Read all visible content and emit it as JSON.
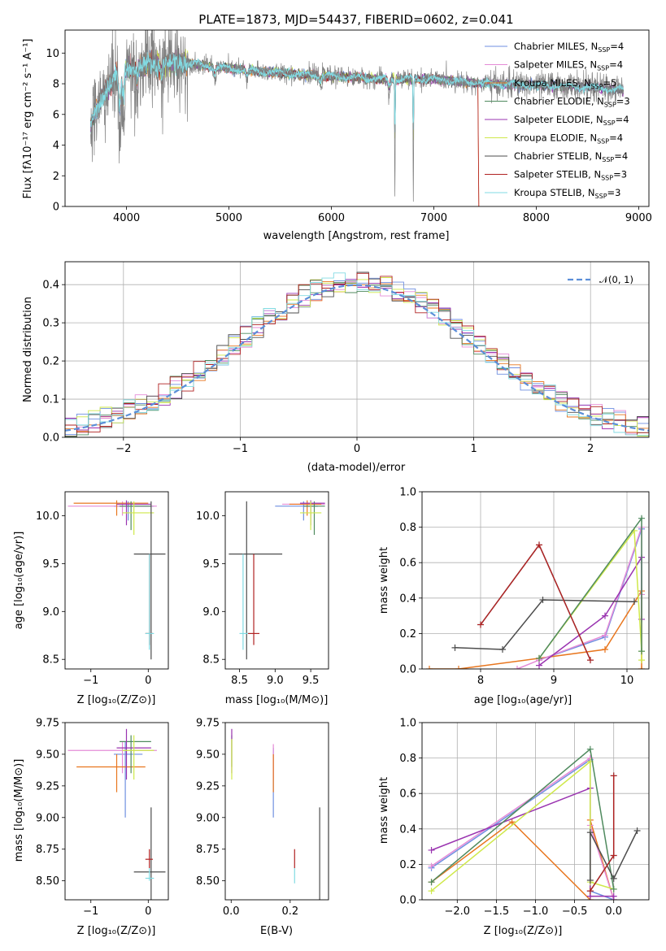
{
  "colors": {
    "Chabrier MILES": "#6f8fe0",
    "Salpeter MILES": "#e58bd7",
    "Kroupa MILES": "#e8761e",
    "Chabrier ELODIE": "#4f8a5e",
    "Salpeter ELODIE": "#9a34b0",
    "Kroupa ELODIE": "#cfe84a",
    "Chabrier STELIB": "#4d4d4d",
    "Salpeter STELIB": "#b02222",
    "Kroupa STELIB": "#82dbe3",
    "data": "#808080",
    "gauss": "#5b8ed8",
    "grid": "#b0b0b0"
  },
  "chart_data": [
    {
      "id": "spectrum",
      "type": "line",
      "title": "PLATE=1873, MJD=54437, FIBERID=0602, z=0.041",
      "xlabel": "wavelength [Angstrom, rest frame]",
      "ylabel": "Flux [fλ10⁻¹⁷ erg cm⁻² s⁻¹ A⁻¹]",
      "xlim": [
        3400,
        9100
      ],
      "ylim": [
        0,
        11.5
      ],
      "xticks": [
        4000,
        5000,
        6000,
        7000,
        8000,
        9000
      ],
      "yticks": [
        0,
        2,
        4,
        6,
        8,
        10
      ],
      "grid": false,
      "legend_position": "top-right",
      "legend": [
        {
          "name": "Chabrier MILES",
          "sub": "4"
        },
        {
          "name": "Salpeter MILES",
          "sub": "4"
        },
        {
          "name": "Kroupa MILES",
          "sub": "5"
        },
        {
          "name": "Chabrier ELODIE",
          "sub": "3"
        },
        {
          "name": "Salpeter ELODIE",
          "sub": "4"
        },
        {
          "name": "Kroupa ELODIE",
          "sub": "4"
        },
        {
          "name": "Chabrier STELIB",
          "sub": "4"
        },
        {
          "name": "Salpeter STELIB",
          "sub": "3"
        },
        {
          "name": "Kroupa STELIB",
          "sub": "3"
        }
      ],
      "continuum": {
        "x": [
          3650,
          3700,
          3800,
          3900,
          4000,
          4200,
          4500,
          5000,
          5500,
          6000,
          6500,
          7000,
          7500,
          8000,
          8500,
          8850
        ],
        "y": [
          5.4,
          6.2,
          7.6,
          8.6,
          9.0,
          9.2,
          9.4,
          9.0,
          8.7,
          8.5,
          8.3,
          8.3,
          8.0,
          7.9,
          7.8,
          7.6
        ]
      },
      "features": [
        {
          "x": 3934,
          "depth": 4.6
        },
        {
          "x": 3968,
          "depth": 4.0
        },
        {
          "x": 4102,
          "depth": 1.5
        },
        {
          "x": 4340,
          "depth": 1.3
        },
        {
          "x": 4861,
          "depth": 0.9
        },
        {
          "x": 5175,
          "depth": 0.8
        },
        {
          "x": 5892,
          "depth": 0.8
        },
        {
          "x": 6563,
          "depth": 1.0
        },
        {
          "x": 6620,
          "depth": 8.0
        },
        {
          "x": 6800,
          "depth": 8.0
        }
      ],
      "models": {
        "Kroupa ELODIE": {
          "xmin": 3900,
          "xmax": 6800
        },
        "Salpeter STELIB": {
          "xmin": 3650,
          "xmax": 7430
        },
        "Kroupa MILES": {
          "xmin": 3650,
          "xmax": 7430
        }
      }
    },
    {
      "id": "residuals",
      "type": "line",
      "xlabel": "(data-model)/error",
      "ylabel": "Normed distribution",
      "xlim": [
        -2.5,
        2.5
      ],
      "ylim": [
        0,
        0.46
      ],
      "xticks": [
        -2,
        -1,
        0,
        1,
        2
      ],
      "yticks": [
        0.0,
        0.1,
        0.2,
        0.3,
        0.4
      ],
      "grid": true,
      "legend_position": "top-right",
      "gauss_label": "𝒩(0, 1)",
      "bin_width": 0.1
    },
    {
      "id": "age_vs_Z",
      "type": "scatter",
      "xlabel": "Z [log₁₀(Z/Z⊙)]",
      "ylabel": "age  [log₁₀(age/yr)]",
      "xlim": [
        -1.45,
        0.35
      ],
      "ylim": [
        8.4,
        10.25
      ],
      "xticks": [
        -1,
        0
      ],
      "yticks": [
        8.5,
        9.0,
        9.5,
        10.0
      ],
      "grid": false,
      "points": [
        {
          "m": "Chabrier MILES",
          "x": -0.35,
          "y": 10.1,
          "xe": [
            -0.6,
            0.1
          ],
          "ye": [
            9.95,
            10.15
          ]
        },
        {
          "m": "Salpeter MILES",
          "x": -0.45,
          "y": 10.1,
          "xe": [
            -1.4,
            0.15
          ],
          "ye": [
            10.0,
            10.15
          ]
        },
        {
          "m": "Kroupa MILES",
          "x": -0.55,
          "y": 10.13,
          "xe": [
            -1.3,
            0.0
          ],
          "ye": [
            10.0,
            10.16
          ]
        },
        {
          "m": "Chabrier ELODIE",
          "x": -0.3,
          "y": 10.1,
          "xe": [
            -0.5,
            0.05
          ],
          "ye": [
            9.85,
            10.15
          ]
        },
        {
          "m": "Salpeter ELODIE",
          "x": -0.38,
          "y": 10.12,
          "xe": [
            -0.55,
            0.05
          ],
          "ye": [
            9.9,
            10.16
          ]
        },
        {
          "m": "Kroupa ELODIE",
          "x": -0.25,
          "y": 10.03,
          "xe": [
            -0.45,
            0.1
          ],
          "ye": [
            9.8,
            10.15
          ]
        },
        {
          "m": "Chabrier STELIB",
          "x": 0.05,
          "y": 9.6,
          "xe": [
            -0.25,
            0.3
          ],
          "ye": [
            8.5,
            10.15
          ]
        },
        {
          "m": "Salpeter STELIB",
          "x": 0.02,
          "y": 8.77,
          "xe": [
            -0.05,
            0.08
          ],
          "ye": [
            8.65,
            9.6
          ]
        },
        {
          "m": "Kroupa STELIB",
          "x": 0.02,
          "y": 8.77,
          "xe": [
            -0.05,
            0.1
          ],
          "ye": [
            8.6,
            9.6
          ]
        }
      ]
    },
    {
      "id": "age_vs_mass",
      "type": "scatter",
      "xlabel": "mass [log₁₀(M/M⊙)]",
      "ylabel": "",
      "xlim": [
        8.3,
        9.75
      ],
      "ylim": [
        8.4,
        10.25
      ],
      "xticks": [
        8.5,
        9.0,
        9.5
      ],
      "yticks": [
        8.5,
        9.0,
        9.5,
        10.0
      ],
      "grid": false,
      "points": [
        {
          "m": "Chabrier MILES",
          "x": 9.4,
          "y": 10.1,
          "xe": [
            9.0,
            9.6
          ],
          "ye": [
            9.95,
            10.15
          ]
        },
        {
          "m": "Salpeter MILES",
          "x": 9.5,
          "y": 10.12,
          "xe": [
            9.1,
            9.7
          ],
          "ye": [
            10.0,
            10.15
          ]
        },
        {
          "m": "Kroupa MILES",
          "x": 9.45,
          "y": 10.12,
          "xe": [
            9.2,
            9.65
          ],
          "ye": [
            10.0,
            10.16
          ]
        },
        {
          "m": "Chabrier ELODIE",
          "x": 9.55,
          "y": 10.1,
          "xe": [
            9.4,
            9.7
          ],
          "ye": [
            9.8,
            10.15
          ]
        },
        {
          "m": "Salpeter ELODIE",
          "x": 9.5,
          "y": 10.13,
          "xe": [
            9.35,
            9.7
          ],
          "ye": [
            9.9,
            10.16
          ]
        },
        {
          "m": "Kroupa ELODIE",
          "x": 9.5,
          "y": 10.03,
          "xe": [
            9.35,
            9.65
          ],
          "ye": [
            9.85,
            10.15
          ]
        },
        {
          "m": "Chabrier STELIB",
          "x": 8.6,
          "y": 9.6,
          "xe": [
            8.35,
            9.1
          ],
          "ye": [
            8.5,
            10.15
          ]
        },
        {
          "m": "Salpeter STELIB",
          "x": 8.7,
          "y": 8.77,
          "xe": [
            8.62,
            8.78
          ],
          "ye": [
            8.65,
            9.6
          ]
        },
        {
          "m": "Kroupa STELIB",
          "x": 8.55,
          "y": 8.77,
          "xe": [
            8.5,
            8.62
          ],
          "ye": [
            8.6,
            9.6
          ]
        }
      ]
    },
    {
      "id": "mass_weight_vs_age",
      "type": "line",
      "xlabel": "age  [log₁₀(age/yr)]",
      "ylabel": "mass weight",
      "xlim": [
        7.2,
        10.3
      ],
      "ylim": [
        0,
        1.0
      ],
      "xticks": [
        8,
        9,
        10
      ],
      "yticks": [
        0.0,
        0.2,
        0.4,
        0.6,
        0.8,
        1.0
      ],
      "grid": true,
      "series": [
        {
          "m": "Kroupa MILES",
          "x": [
            7.3,
            7.7,
            8.8,
            9.7,
            10.2,
            10.2
          ],
          "y": [
            0.0,
            0.0,
            0.06,
            0.11,
            0.44,
            0.0
          ]
        },
        {
          "m": "Chabrier MILES",
          "x": [
            8.8,
            9.7,
            10.2
          ],
          "y": [
            0.05,
            0.18,
            0.79
          ]
        },
        {
          "m": "Salpeter MILES",
          "x": [
            8.5,
            8.8,
            9.7,
            10.2,
            10.2
          ],
          "y": [
            0.0,
            0.05,
            0.19,
            0.8,
            0.42
          ]
        },
        {
          "m": "Salpeter ELODIE",
          "x": [
            8.8,
            9.7,
            10.2,
            10.2
          ],
          "y": [
            0.02,
            0.3,
            0.63,
            0.28
          ]
        },
        {
          "m": "Kroupa ELODIE",
          "x": [
            8.8,
            10.1,
            10.2,
            10.2
          ],
          "y": [
            0.06,
            0.78,
            0.1,
            0.05
          ]
        },
        {
          "m": "Chabrier ELODIE",
          "x": [
            8.8,
            10.2,
            10.2
          ],
          "y": [
            0.06,
            0.85,
            0.1
          ]
        },
        {
          "m": "Chabrier STELIB",
          "x": [
            7.65,
            8.3,
            8.85,
            10.1
          ],
          "y": [
            0.12,
            0.11,
            0.39,
            0.38
          ]
        },
        {
          "m": "Kroupa STELIB",
          "x": [
            8.0,
            8.8,
            9.5
          ],
          "y": [
            0.25,
            0.7,
            0.05
          ]
        },
        {
          "m": "Salpeter STELIB",
          "x": [
            8.0,
            8.8,
            9.5
          ],
          "y": [
            0.25,
            0.7,
            0.05
          ]
        }
      ]
    },
    {
      "id": "mass_vs_Z",
      "type": "scatter",
      "xlabel": "Z [log₁₀(Z/Z⊙)]",
      "ylabel": "mass [log₁₀(M/M⊙)]",
      "xlim": [
        -1.45,
        0.35
      ],
      "ylim": [
        8.35,
        9.75
      ],
      "xticks": [
        -1,
        0
      ],
      "yticks": [
        8.5,
        8.75,
        9.0,
        9.25,
        9.5,
        9.75
      ],
      "grid": false,
      "points": [
        {
          "m": "Chabrier MILES",
          "x": -0.4,
          "y": 9.5,
          "xe": [
            -0.6,
            -0.1
          ],
          "ye": [
            9.0,
            9.6
          ]
        },
        {
          "m": "Salpeter MILES",
          "x": -0.45,
          "y": 9.53,
          "xe": [
            -1.4,
            0.15
          ],
          "ye": [
            9.35,
            9.6
          ]
        },
        {
          "m": "Kroupa MILES",
          "x": -0.55,
          "y": 9.4,
          "xe": [
            -1.25,
            -0.05
          ],
          "ye": [
            9.2,
            9.5
          ]
        },
        {
          "m": "Chabrier ELODIE",
          "x": -0.3,
          "y": 9.6,
          "xe": [
            -0.5,
            0.05
          ],
          "ye": [
            9.35,
            9.65
          ]
        },
        {
          "m": "Salpeter ELODIE",
          "x": -0.38,
          "y": 9.55,
          "xe": [
            -0.55,
            0.05
          ],
          "ye": [
            9.3,
            9.7
          ]
        },
        {
          "m": "Kroupa ELODIE",
          "x": -0.25,
          "y": 9.53,
          "xe": [
            -0.45,
            0.1
          ],
          "ye": [
            9.3,
            9.65
          ]
        },
        {
          "m": "Chabrier STELIB",
          "x": 0.05,
          "y": 8.57,
          "xe": [
            -0.25,
            0.3
          ],
          "ye": [
            8.35,
            9.08
          ]
        },
        {
          "m": "Salpeter STELIB",
          "x": 0.02,
          "y": 8.67,
          "xe": [
            -0.05,
            0.08
          ],
          "ye": [
            8.6,
            8.75
          ]
        },
        {
          "m": "Kroupa STELIB",
          "x": 0.02,
          "y": 8.52,
          "xe": [
            -0.05,
            0.1
          ],
          "ye": [
            8.5,
            8.6
          ]
        }
      ]
    },
    {
      "id": "mass_vs_ebv",
      "type": "scatter",
      "xlabel": "E(B-V)",
      "ylabel": "",
      "xlim": [
        -0.02,
        0.33
      ],
      "ylim": [
        8.35,
        9.75
      ],
      "xticks": [
        0.0,
        0.2
      ],
      "yticks": [
        8.5,
        8.75,
        9.0,
        9.25,
        9.5,
        9.75
      ],
      "grid": false,
      "points": [
        {
          "m": "Chabrier MILES",
          "x": 0.143,
          "y": 9.5,
          "ye": [
            9.0,
            9.55
          ]
        },
        {
          "m": "Salpeter MILES",
          "x": 0.143,
          "y": 9.53,
          "ye": [
            9.3,
            9.58
          ]
        },
        {
          "m": "Kroupa MILES",
          "x": 0.143,
          "y": 9.4,
          "ye": [
            9.2,
            9.5
          ]
        },
        {
          "m": "Chabrier ELODIE",
          "x": 0.002,
          "y": 9.6,
          "ye": [
            9.4,
            9.65
          ]
        },
        {
          "m": "Salpeter ELODIE",
          "x": 0.002,
          "y": 9.55,
          "ye": [
            9.35,
            9.7
          ]
        },
        {
          "m": "Kroupa ELODIE",
          "x": 0.002,
          "y": 9.53,
          "ye": [
            9.3,
            9.62
          ]
        },
        {
          "m": "Chabrier STELIB",
          "x": 0.3,
          "y": 8.57,
          "ye": [
            8.35,
            9.08
          ]
        },
        {
          "m": "Salpeter STELIB",
          "x": 0.215,
          "y": 8.67,
          "ye": [
            8.6,
            8.75
          ]
        },
        {
          "m": "Kroupa STELIB",
          "x": 0.215,
          "y": 8.52,
          "ye": [
            8.48,
            8.6
          ]
        }
      ]
    },
    {
      "id": "mass_weight_vs_Z",
      "type": "line",
      "xlabel": "Z [log₁₀(Z/Z⊙)]",
      "ylabel": "mass weight",
      "xlim": [
        -2.45,
        0.45
      ],
      "ylim": [
        0,
        1.0
      ],
      "xticks": [
        -2.0,
        -1.5,
        -1.0,
        -0.5,
        0.0
      ],
      "yticks": [
        0.0,
        0.2,
        0.4,
        0.6,
        0.8,
        1.0
      ],
      "grid": true,
      "series": [
        {
          "m": "Kroupa MILES",
          "x": [
            -2.33,
            -1.3,
            -0.3,
            -0.3,
            0.0
          ],
          "y": [
            0.1,
            0.44,
            0.0,
            0.45,
            0.0
          ]
        },
        {
          "m": "Chabrier MILES",
          "x": [
            -2.33,
            -0.3,
            -0.3,
            0.0
          ],
          "y": [
            0.18,
            0.79,
            0.05,
            0.0
          ]
        },
        {
          "m": "Salpeter MILES",
          "x": [
            -2.33,
            -0.3,
            -0.3,
            0.0
          ],
          "y": [
            0.19,
            0.8,
            0.42,
            0.0
          ]
        },
        {
          "m": "Salpeter ELODIE",
          "x": [
            -2.33,
            -0.3,
            -0.3,
            0.0
          ],
          "y": [
            0.28,
            0.63,
            0.02,
            0.02
          ]
        },
        {
          "m": "Kroupa ELODIE",
          "x": [
            -2.33,
            -0.3,
            -0.3,
            0.0
          ],
          "y": [
            0.05,
            0.78,
            0.1,
            0.06
          ]
        },
        {
          "m": "Chabrier ELODIE",
          "x": [
            -2.33,
            -0.3,
            0.0
          ],
          "y": [
            0.1,
            0.85,
            0.06
          ]
        },
        {
          "m": "Chabrier STELIB",
          "x": [
            -0.3,
            -0.3,
            0.0,
            0.3
          ],
          "y": [
            0.11,
            0.38,
            0.12,
            0.39
          ]
        },
        {
          "m": "Kroupa STELIB",
          "x": [
            -0.3,
            0.0,
            0.0
          ],
          "y": [
            0.05,
            0.25,
            0.7
          ]
        },
        {
          "m": "Salpeter STELIB",
          "x": [
            -0.3,
            0.0,
            0.0
          ],
          "y": [
            0.05,
            0.25,
            0.7
          ]
        }
      ]
    }
  ]
}
